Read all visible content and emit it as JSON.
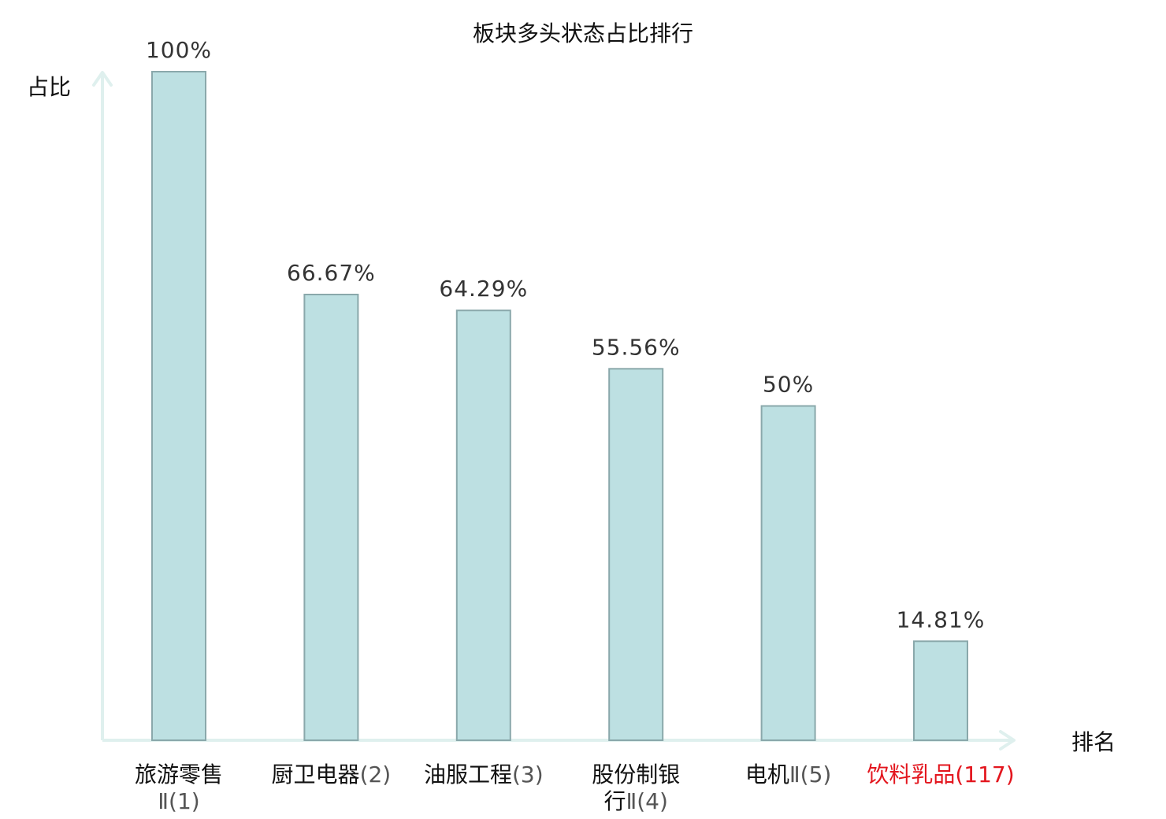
{
  "colors": {
    "bar_fill": "#bde0e2",
    "bar_stroke": "#8aa8ab",
    "axis": "#dff0ee",
    "highlight_text": "#e3161e",
    "normal_text": "#111111",
    "rank_text": "#555555"
  },
  "chart_data": {
    "type": "bar",
    "title": "板块多头状态占比排行",
    "ylabel": "占比",
    "xlabel": "排名",
    "ylim": [
      0,
      100
    ],
    "grid": false,
    "categories": [
      {
        "lines": [
          [
            {
              "t": "旅游零售",
              "rank": false
            }
          ],
          [
            {
              "t": "Ⅱ(1)",
              "rank": true
            }
          ]
        ],
        "highlight": false
      },
      {
        "lines": [
          [
            {
              "t": "厨卫电器",
              "rank": false
            },
            {
              "t": "(2)",
              "rank": true
            }
          ]
        ],
        "highlight": false
      },
      {
        "lines": [
          [
            {
              "t": "油服工程",
              "rank": false
            },
            {
              "t": "(3)",
              "rank": true
            }
          ]
        ],
        "highlight": false
      },
      {
        "lines": [
          [
            {
              "t": "股份制银",
              "rank": false
            }
          ],
          [
            {
              "t": "行",
              "rank": false
            },
            {
              "t": "Ⅱ(4)",
              "rank": true
            }
          ]
        ],
        "highlight": false
      },
      {
        "lines": [
          [
            {
              "t": "电机",
              "rank": false
            },
            {
              "t": "Ⅱ(5)",
              "rank": true
            }
          ]
        ],
        "highlight": false
      },
      {
        "lines": [
          [
            {
              "t": "饮料乳品",
              "rank": false
            },
            {
              "t": "(117)",
              "rank": true
            }
          ]
        ],
        "highlight": true
      }
    ],
    "values": [
      100,
      66.67,
      64.29,
      55.56,
      50,
      14.81
    ],
    "value_labels": [
      "100%",
      "66.67%",
      "64.29%",
      "55.56%",
      "50%",
      "14.81%"
    ]
  }
}
